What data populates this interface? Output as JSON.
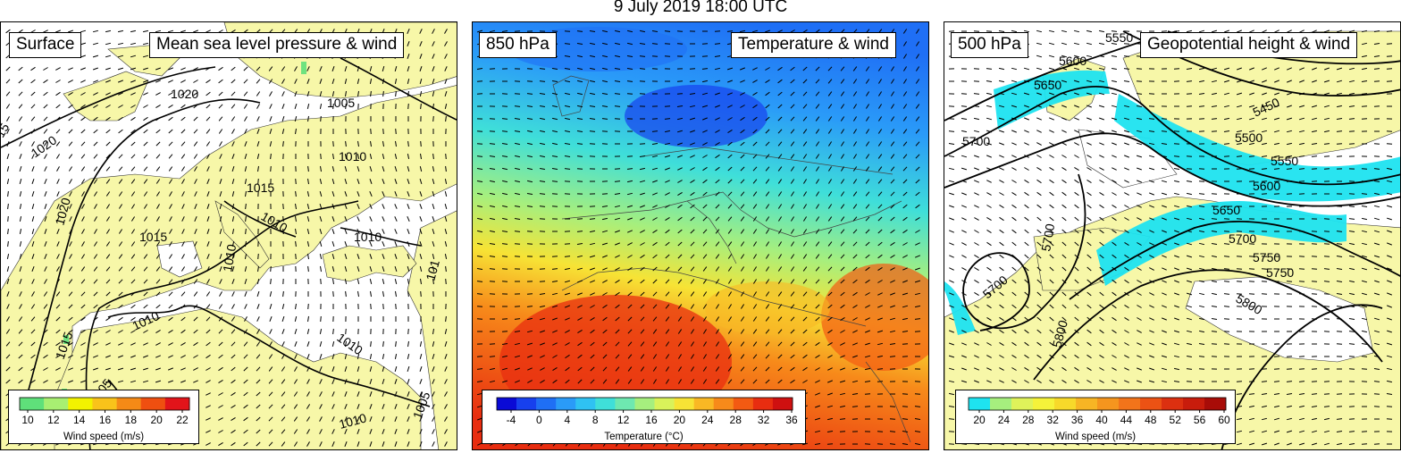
{
  "title": "9 July 2019 18:00 UTC",
  "panels": [
    {
      "level": "Surface",
      "field": "Mean sea level pressure & wind",
      "colorbar": {
        "ticks": [
          "10",
          "12",
          "14",
          "16",
          "18",
          "20",
          "22"
        ],
        "colors": [
          "#5fe07a",
          "#a8ef72",
          "#f2f200",
          "#f9c31a",
          "#f58a16",
          "#ef4f10",
          "#e2141a"
        ],
        "label": "Wind speed (m/s)"
      },
      "isobar_labels": [
        "1020",
        "1020",
        "1020",
        "1015",
        "1015",
        "1015",
        "1015",
        "1005",
        "1005",
        "1005",
        "1005",
        "1010",
        "1010",
        "1010",
        "1010",
        "1010",
        "1010",
        "1010",
        "1010",
        "1010",
        "101",
        "15"
      ]
    },
    {
      "level": "850 hPa",
      "field": "Temperature & wind",
      "colorbar": {
        "ticks": [
          "-4",
          "0",
          "4",
          "8",
          "12",
          "16",
          "20",
          "24",
          "28",
          "32",
          "36"
        ],
        "colors": [
          "#0a0ad6",
          "#1740ee",
          "#1f6ff5",
          "#2a9bf8",
          "#2fc2f2",
          "#3fdfd9",
          "#6ee8b0",
          "#a6ef7e",
          "#d9f25a",
          "#f7e335",
          "#f9b824",
          "#f78a1a",
          "#f35a12",
          "#e82d10",
          "#cf1010"
        ],
        "label": "Temperature (°C)"
      }
    },
    {
      "level": "500 hPa",
      "field": "Geopotential height & wind",
      "colorbar": {
        "ticks": [
          "20",
          "24",
          "28",
          "32",
          "36",
          "40",
          "44",
          "48",
          "52",
          "56",
          "60"
        ],
        "colors": [
          "#1ee3f0",
          "#a6ef7e",
          "#dff25a",
          "#f5f23a",
          "#f7d92a",
          "#f7b524",
          "#f5951e",
          "#f2741a",
          "#ec5214",
          "#dc3010",
          "#c81c0c",
          "#a80c08"
        ],
        "label": "Wind speed (m/s)"
      },
      "height_labels": [
        "5550",
        "5600",
        "5650",
        "5450",
        "5500",
        "5550",
        "5600",
        "5650",
        "5700",
        "5700",
        "5700",
        "5750",
        "5750",
        "5700",
        "5800",
        "5800"
      ]
    }
  ],
  "colors": {
    "land": "#f7f7a8",
    "sea": "#ffffff",
    "jet": "#1ee3f0"
  }
}
